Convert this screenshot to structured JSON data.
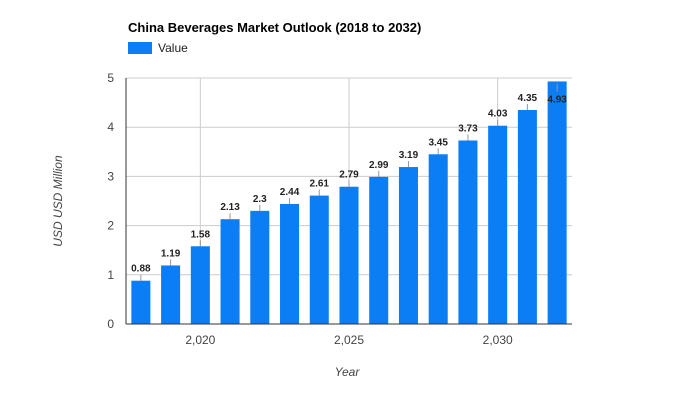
{
  "chart_data": {
    "type": "bar",
    "title": "China Beverages Market Outlook (2018 to 2032)",
    "xlabel": "Year",
    "ylabel": "USD USD Million",
    "legend": {
      "position": "top-left",
      "entries": [
        "Value"
      ]
    },
    "series": [
      {
        "name": "Value",
        "color": "#0b7ef5",
        "x": [
          2018,
          2019,
          2020,
          2021,
          2022,
          2023,
          2024,
          2025,
          2026,
          2027,
          2028,
          2029,
          2030,
          2031,
          2032
        ],
        "values": [
          0.88,
          1.19,
          1.58,
          2.13,
          2.3,
          2.44,
          2.61,
          2.79,
          2.99,
          3.19,
          3.45,
          3.73,
          4.03,
          4.35,
          4.93
        ]
      }
    ],
    "data_labels": [
      "0.88",
      "1.19",
      "1.58",
      "2.13",
      "2.3",
      "2.44",
      "2.61",
      "2.79",
      "2.99",
      "3.19",
      "3.45",
      "3.73",
      "4.03",
      "4.35",
      "4.93"
    ],
    "x_ticks": [
      {
        "value": 2020,
        "label": "2,020"
      },
      {
        "value": 2025,
        "label": "2,025"
      },
      {
        "value": 2030,
        "label": "2,030"
      }
    ],
    "y_ticks": [
      0,
      1,
      2,
      3,
      4,
      5
    ],
    "xlim": [
      2017.5,
      2032.5
    ],
    "ylim": [
      0,
      5
    ],
    "grid": true
  }
}
